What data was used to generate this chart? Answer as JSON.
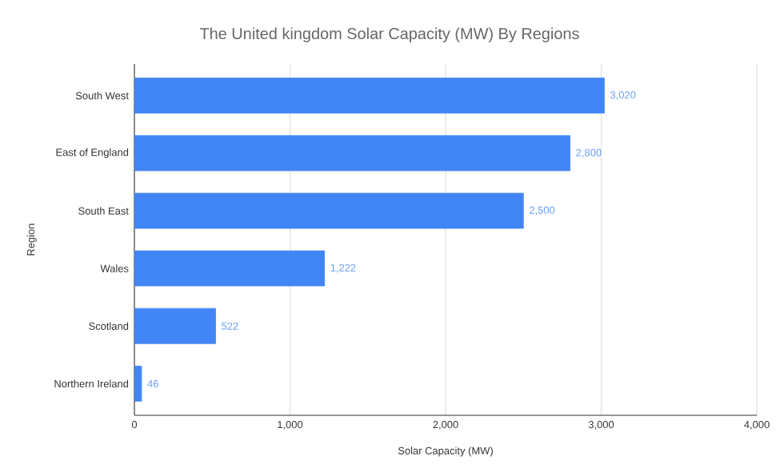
{
  "chart_data": {
    "type": "bar",
    "orientation": "horizontal",
    "title": "The United kingdom Solar Capacity (MW) By Regions",
    "xlabel": "Solar Capacity (MW)",
    "ylabel": "Region",
    "categories": [
      "South West",
      "East of England",
      "South East",
      "Wales",
      "Scotland",
      "Northern Ireland"
    ],
    "values": [
      3020,
      2800,
      2500,
      1222,
      522,
      46
    ],
    "value_labels": [
      "3,020",
      "2,800",
      "2,500",
      "1,222",
      "522",
      "46"
    ],
    "color": "#4285f4",
    "xlim": [
      0,
      4000
    ],
    "xticks": [
      0,
      {
        "value": 1000,
        "label": "1,000"
      },
      {
        "value": 2000,
        "label": "2,000"
      },
      {
        "value": 3000,
        "label": "3,000"
      },
      {
        "value": 4000,
        "label": "4,000"
      }
    ],
    "grid": "x"
  }
}
